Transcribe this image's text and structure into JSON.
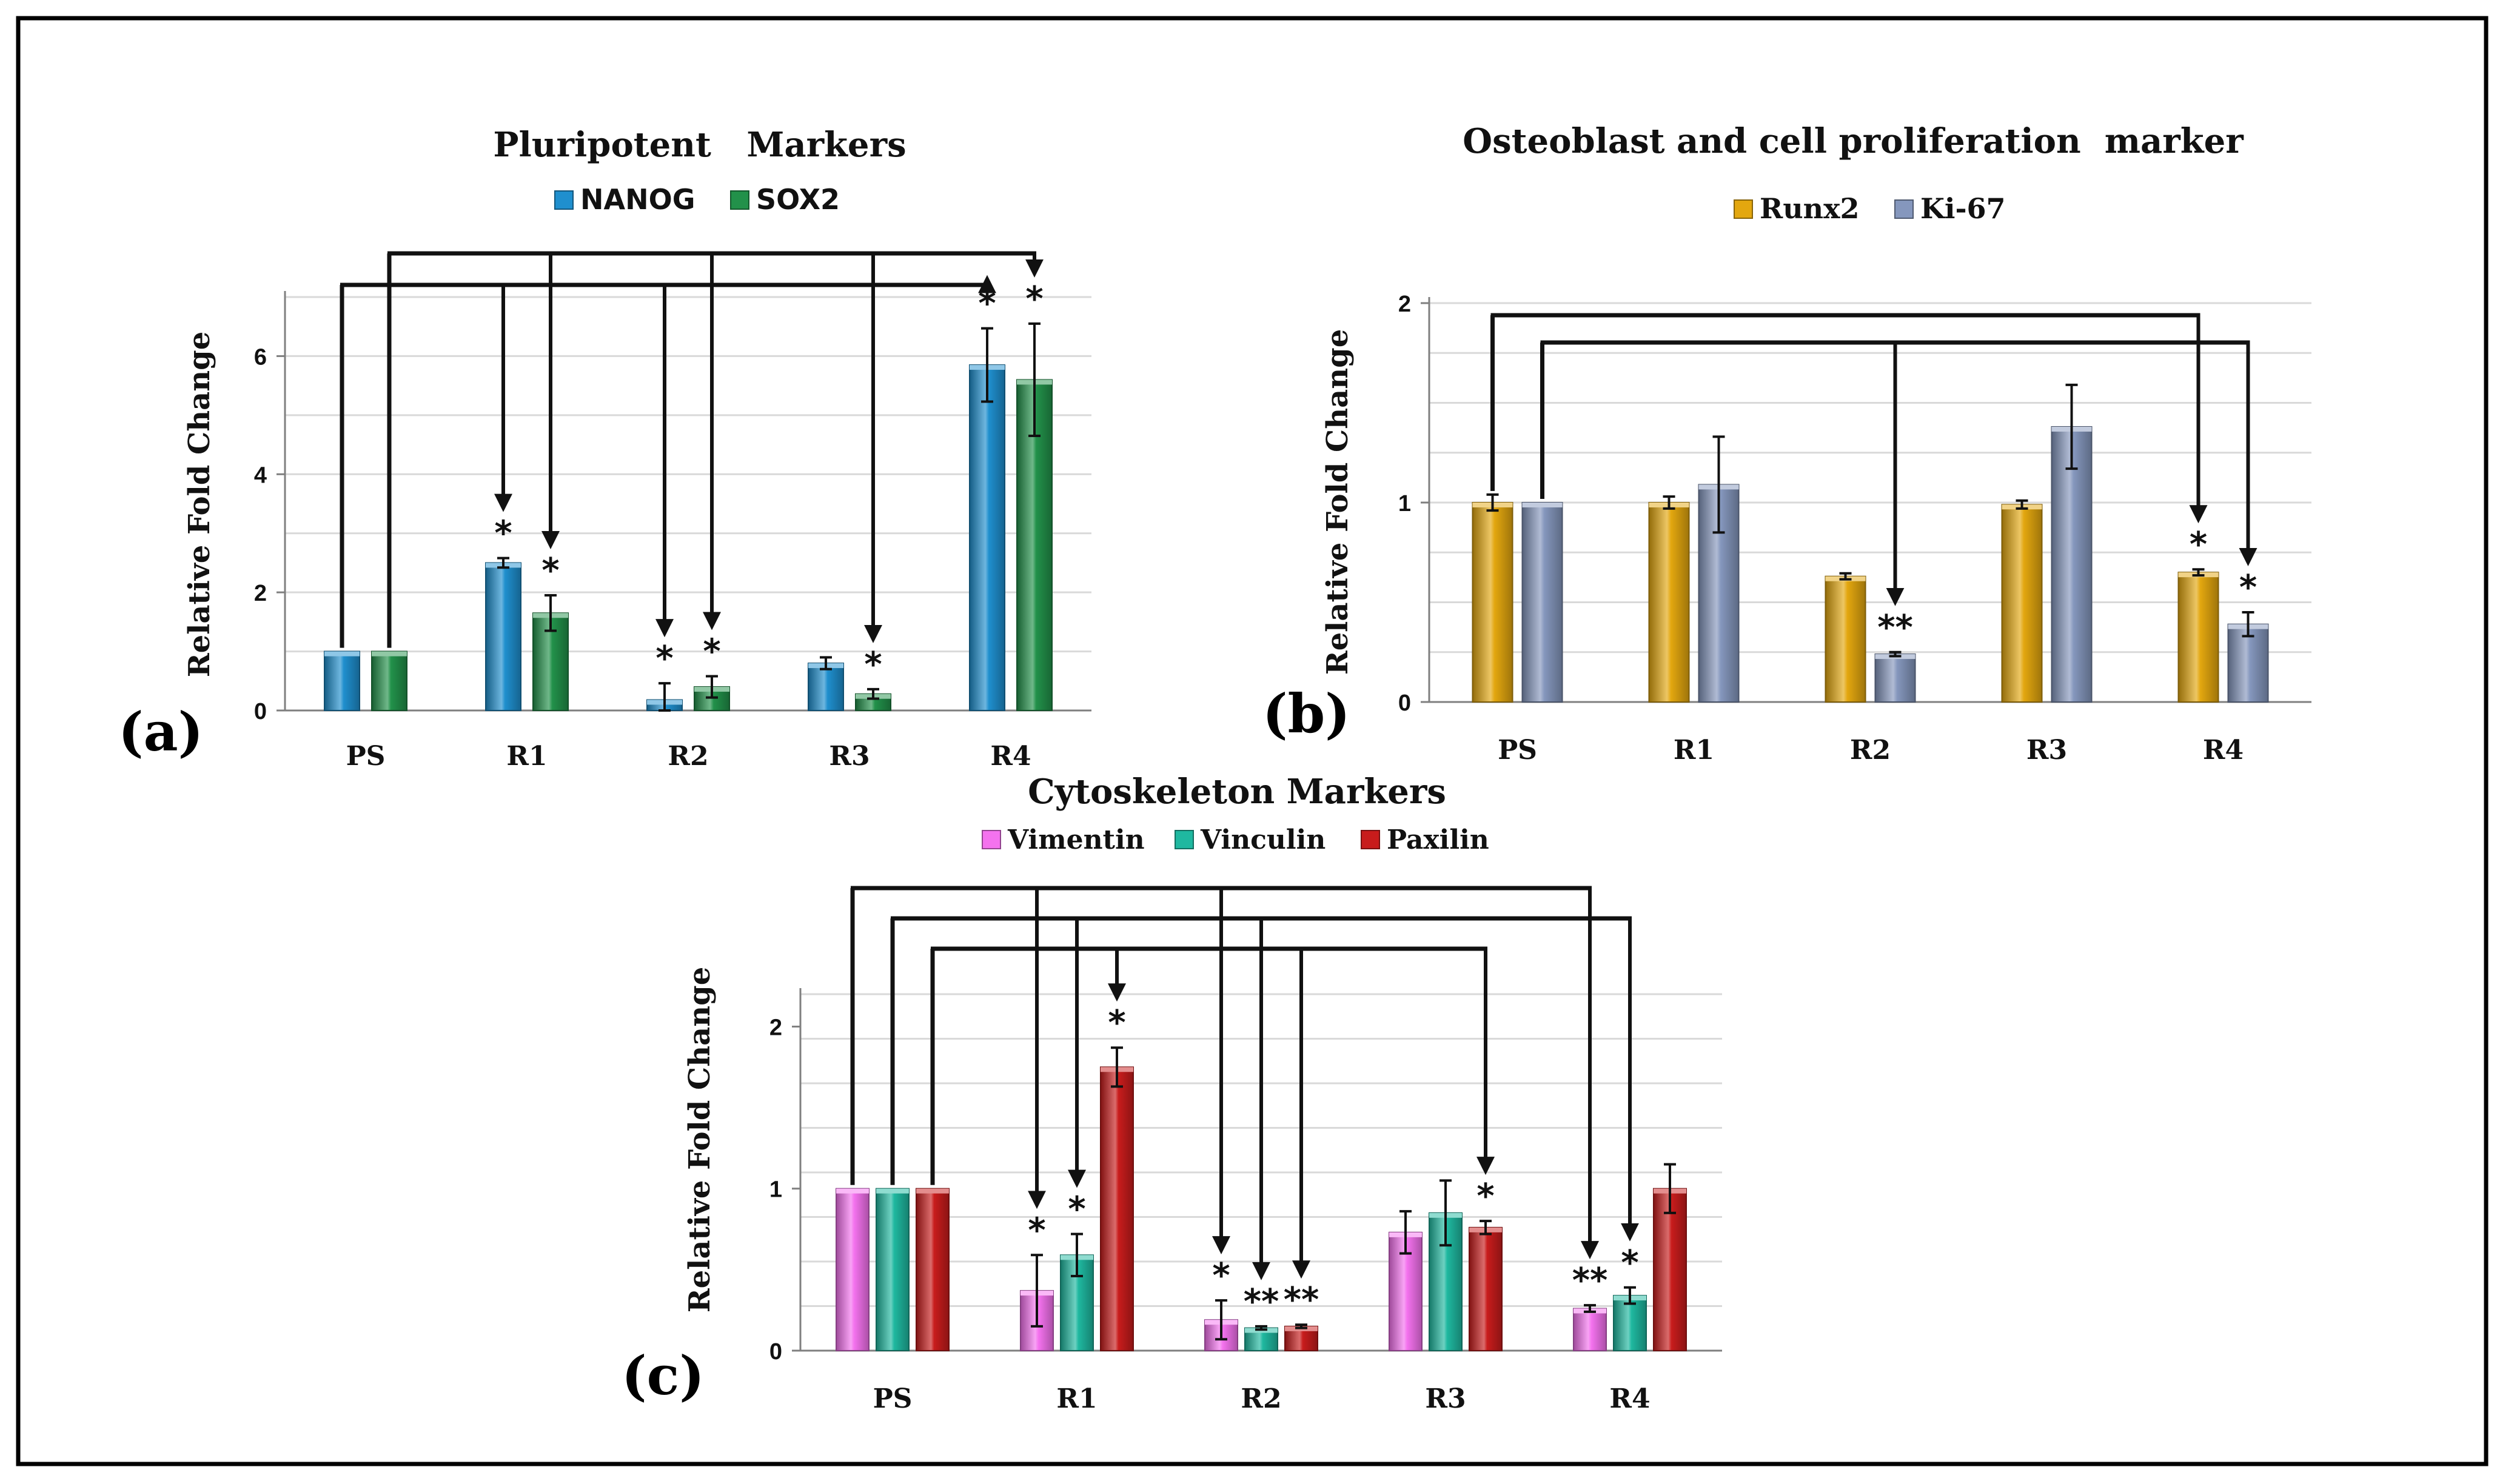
{
  "chart_data": [
    {
      "type": "bar",
      "panel": "(a)",
      "title": "Pluripotent   Markers",
      "xlabel": "",
      "ylabel": "Relative Fold Change",
      "categories": [
        "PS",
        "R1",
        "R2",
        "R3",
        "R4"
      ],
      "ylim": [
        0,
        7
      ],
      "yticks": [
        "0",
        "2",
        "4",
        "6"
      ],
      "grid": true,
      "legend": "top-center",
      "series": [
        {
          "name": "NANOG",
          "color": "#1f8fce",
          "values": [
            1.0,
            2.5,
            0.18,
            0.8,
            5.85
          ],
          "errors": [
            0.0,
            0.08,
            0.28,
            0.1,
            0.62
          ],
          "significance": [
            "",
            "*",
            "*",
            "",
            "*"
          ]
        },
        {
          "name": "SOX2",
          "color": "#22914a",
          "values": [
            1.0,
            1.65,
            0.4,
            0.28,
            5.6
          ],
          "errors": [
            0.0,
            0.3,
            0.18,
            0.08,
            0.95
          ],
          "significance": [
            "",
            "*",
            "*",
            "*",
            "*"
          ]
        }
      ]
    },
    {
      "type": "bar",
      "panel": "(b)",
      "title": "Osteoblast and cell proliferation  marker",
      "xlabel": "",
      "ylabel": "Relative Fold Change",
      "categories": [
        "PS",
        "R1",
        "R2",
        "R3",
        "R4"
      ],
      "ylim": [
        0,
        2
      ],
      "yticks": [
        "0",
        "1",
        "2"
      ],
      "grid": true,
      "legend": "top-center",
      "series": [
        {
          "name": "Runx2",
          "color": "#e3a70f",
          "values": [
            1.0,
            1.0,
            0.63,
            0.99,
            0.65
          ],
          "errors": [
            0.04,
            0.03,
            0.015,
            0.02,
            0.015
          ],
          "significance": [
            "",
            "",
            "",
            "",
            "*"
          ]
        },
        {
          "name": "Ki-67",
          "color": "#8597bd",
          "values": [
            1.0,
            1.09,
            0.24,
            1.38,
            0.39
          ],
          "errors": [
            0.0,
            0.24,
            0.01,
            0.21,
            0.06
          ],
          "significance": [
            "",
            "",
            "**",
            "",
            "*"
          ]
        }
      ]
    },
    {
      "type": "bar",
      "panel": "(c)",
      "title": "Cytoskeleton Markers",
      "xlabel": "",
      "ylabel": "Relative Fold Change",
      "categories": [
        "PS",
        "R1",
        "R2",
        "R3",
        "R4"
      ],
      "ylim": [
        0,
        2.2
      ],
      "yticks": [
        "0",
        "1",
        "2"
      ],
      "grid": true,
      "legend": "top-center",
      "series": [
        {
          "name": "Vimentin",
          "color": "#f472ee",
          "values": [
            1.0,
            0.37,
            0.19,
            0.73,
            0.26
          ],
          "errors": [
            0.0,
            0.22,
            0.12,
            0.13,
            0.02
          ],
          "significance": [
            "",
            "*",
            "*",
            "",
            "**"
          ]
        },
        {
          "name": "Vinculin",
          "color": "#1fb8a0",
          "values": [
            1.0,
            0.59,
            0.14,
            0.85,
            0.34
          ],
          "errors": [
            0.0,
            0.13,
            0.01,
            0.2,
            0.05
          ],
          "significance": [
            "",
            "*",
            "**",
            "",
            "*"
          ]
        },
        {
          "name": "Paxilin",
          "color": "#c81c1c",
          "values": [
            1.0,
            1.75,
            0.15,
            0.76,
            1.0
          ],
          "errors": [
            0.0,
            0.12,
            0.01,
            0.04,
            0.15
          ],
          "significance": [
            "",
            "*",
            "**",
            "*",
            ""
          ]
        }
      ]
    }
  ]
}
